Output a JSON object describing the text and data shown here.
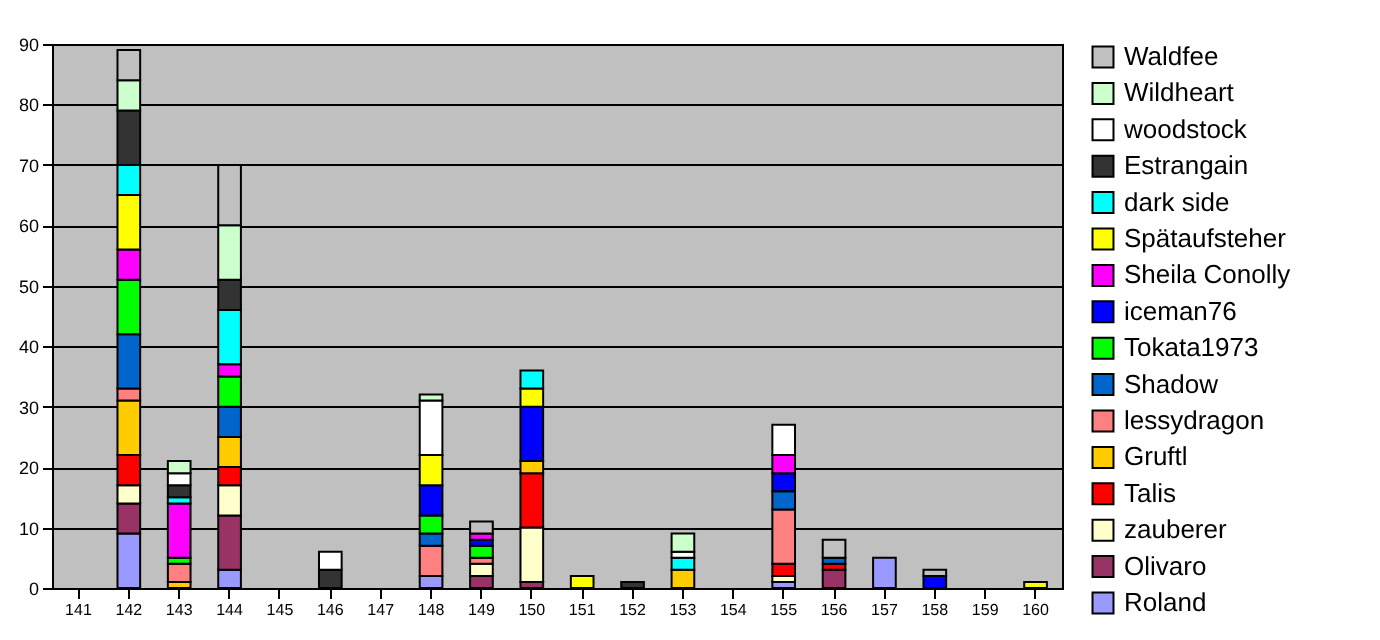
{
  "chart_data": {
    "type": "bar",
    "stacked": true,
    "categories": [
      "141",
      "142",
      "143",
      "144",
      "145",
      "146",
      "147",
      "148",
      "149",
      "150",
      "151",
      "152",
      "153",
      "154",
      "155",
      "156",
      "157",
      "158",
      "159",
      "160"
    ],
    "series": [
      {
        "name": "Roland",
        "color": "#9999ff",
        "values": [
          null,
          9,
          null,
          3,
          null,
          null,
          null,
          2,
          null,
          null,
          null,
          null,
          null,
          null,
          1,
          null,
          5,
          null,
          null,
          null
        ]
      },
      {
        "name": "Olivaro",
        "color": "#993366",
        "values": [
          null,
          5,
          null,
          9,
          null,
          null,
          null,
          null,
          2,
          1,
          null,
          null,
          null,
          null,
          null,
          3,
          null,
          null,
          null,
          null
        ]
      },
      {
        "name": "zauberer",
        "color": "#ffffcc",
        "values": [
          null,
          3,
          null,
          5,
          null,
          null,
          null,
          null,
          2,
          9,
          null,
          null,
          null,
          null,
          1,
          null,
          null,
          null,
          null,
          null
        ]
      },
      {
        "name": "Talis",
        "color": "#ff0000",
        "values": [
          null,
          5,
          null,
          3,
          null,
          null,
          null,
          null,
          null,
          9,
          null,
          null,
          null,
          null,
          2,
          1,
          null,
          null,
          null,
          null
        ]
      },
      {
        "name": "Gruftl",
        "color": "#ffcc00",
        "values": [
          null,
          9,
          1,
          5,
          null,
          null,
          null,
          null,
          null,
          2,
          null,
          null,
          3,
          null,
          null,
          null,
          null,
          null,
          null,
          null
        ]
      },
      {
        "name": "lessydragon",
        "color": "#ff8080",
        "values": [
          null,
          2,
          3,
          null,
          null,
          null,
          null,
          5,
          1,
          null,
          null,
          null,
          null,
          null,
          9,
          null,
          null,
          null,
          null,
          null
        ]
      },
      {
        "name": "Shadow",
        "color": "#0066cc",
        "values": [
          null,
          9,
          null,
          5,
          null,
          null,
          null,
          2,
          null,
          null,
          null,
          null,
          null,
          null,
          3,
          1,
          null,
          null,
          null,
          null
        ]
      },
      {
        "name": "Tokata1973",
        "color": "#00ff00",
        "values": [
          null,
          9,
          1,
          5,
          null,
          null,
          null,
          3,
          2,
          null,
          null,
          null,
          null,
          null,
          null,
          null,
          null,
          null,
          null,
          null
        ]
      },
      {
        "name": "iceman76",
        "color": "#0000ff",
        "values": [
          null,
          null,
          null,
          null,
          null,
          null,
          null,
          5,
          1,
          9,
          null,
          null,
          null,
          null,
          3,
          null,
          null,
          2,
          null,
          null
        ]
      },
      {
        "name": "Sheila Conolly",
        "color": "#ff00ff",
        "values": [
          null,
          5,
          9,
          2,
          null,
          null,
          null,
          null,
          1,
          null,
          null,
          null,
          null,
          null,
          3,
          null,
          null,
          null,
          null,
          null
        ]
      },
      {
        "name": "Spätaufsteher",
        "color": "#ffff00",
        "values": [
          null,
          9,
          null,
          null,
          null,
          null,
          null,
          5,
          null,
          3,
          2,
          null,
          null,
          null,
          null,
          null,
          null,
          null,
          null,
          1
        ]
      },
      {
        "name": "dark side",
        "color": "#00ffff",
        "values": [
          null,
          5,
          1,
          9,
          null,
          null,
          null,
          null,
          null,
          3,
          null,
          null,
          2,
          null,
          null,
          null,
          null,
          null,
          null,
          null
        ]
      },
      {
        "name": "Estrangain",
        "color": "#333333",
        "values": [
          null,
          9,
          2,
          5,
          null,
          3,
          null,
          null,
          null,
          null,
          null,
          1,
          null,
          null,
          null,
          null,
          null,
          null,
          null,
          null
        ]
      },
      {
        "name": "woodstock",
        "color": "#ffffff",
        "values": [
          null,
          null,
          2,
          null,
          null,
          3,
          null,
          9,
          null,
          null,
          null,
          null,
          1,
          null,
          5,
          null,
          null,
          null,
          null,
          null
        ]
      },
      {
        "name": "Wildheart",
        "color": "#ccffcc",
        "values": [
          null,
          5,
          2,
          9,
          null,
          null,
          null,
          1,
          null,
          null,
          null,
          null,
          3,
          null,
          null,
          null,
          null,
          null,
          null,
          null
        ]
      },
      {
        "name": "Waldfee",
        "color": "#c0c0c0",
        "values": [
          null,
          5,
          null,
          10,
          null,
          null,
          null,
          null,
          2,
          null,
          null,
          null,
          null,
          null,
          null,
          3,
          null,
          1,
          null,
          null
        ]
      }
    ],
    "ylim": [
      0,
      90
    ],
    "yticks": [
      0,
      10,
      20,
      30,
      40,
      50,
      60,
      70,
      80,
      90
    ],
    "grid": "y",
    "legend": "right"
  }
}
